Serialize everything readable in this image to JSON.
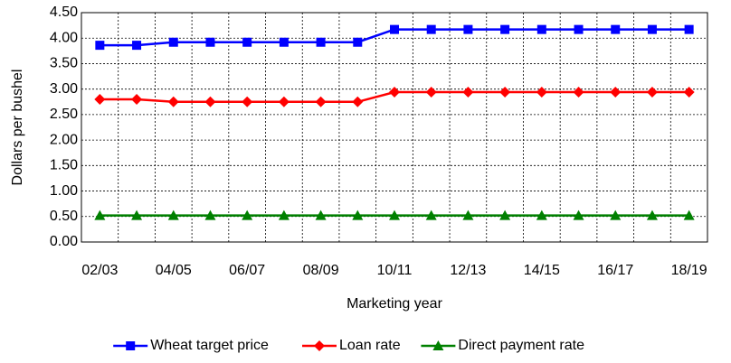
{
  "chart_data": {
    "type": "line",
    "x_label": "Marketing year",
    "y_label": "Dollars per bushel",
    "categories": [
      "02/03",
      null,
      "04/05",
      null,
      "06/07",
      null,
      "08/09",
      null,
      "10/11",
      null,
      "12/13",
      null,
      "14/15",
      null,
      "16/17",
      null,
      "18/19"
    ],
    "series": [
      {
        "name": "Wheat target price",
        "color": "#0000ff",
        "marker": "square",
        "values": [
          3.86,
          3.86,
          3.92,
          3.92,
          3.92,
          3.92,
          3.92,
          3.92,
          4.17,
          4.17,
          4.17,
          4.17,
          4.17,
          4.17,
          4.17,
          4.17,
          4.17
        ]
      },
      {
        "name": "Loan rate",
        "color": "#ff0000",
        "marker": "diamond",
        "values": [
          2.8,
          2.8,
          2.75,
          2.75,
          2.75,
          2.75,
          2.75,
          2.75,
          2.94,
          2.94,
          2.94,
          2.94,
          2.94,
          2.94,
          2.94,
          2.94,
          2.94
        ]
      },
      {
        "name": "Direct payment rate",
        "color": "#008000",
        "marker": "triangle",
        "values": [
          0.52,
          0.52,
          0.52,
          0.52,
          0.52,
          0.52,
          0.52,
          0.52,
          0.52,
          0.52,
          0.52,
          0.52,
          0.52,
          0.52,
          0.52,
          0.52,
          0.52
        ]
      }
    ],
    "ylim": [
      0,
      4.5
    ],
    "yticks": [
      {
        "value": 0,
        "label": "0.00"
      },
      {
        "value": 0.5,
        "label": "0.50"
      },
      {
        "value": 1,
        "label": "1.00"
      },
      {
        "value": 1.5,
        "label": "1.50"
      },
      {
        "value": 2,
        "label": "2.00"
      },
      {
        "value": 2.5,
        "label": "2.50"
      },
      {
        "value": 3,
        "label": "3.00"
      },
      {
        "value": 3.5,
        "label": "3.50"
      },
      {
        "value": 4,
        "label": "4.00"
      },
      {
        "value": 4.5,
        "label": "4.50"
      }
    ],
    "grid": true,
    "legend": "bottom"
  }
}
